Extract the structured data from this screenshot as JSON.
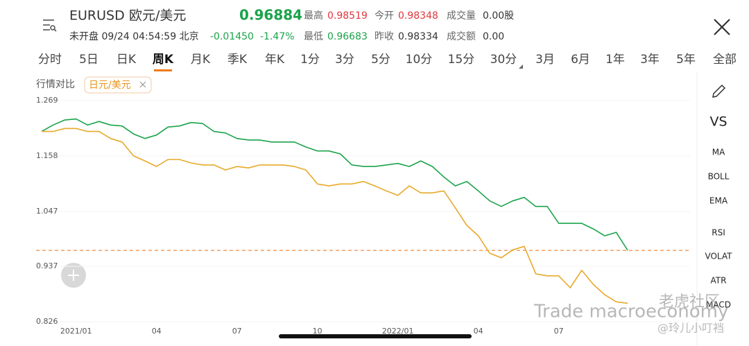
{
  "header": {
    "symbol_name": "欧元/美元",
    "price": "0.96884",
    "high_label": "最高",
    "high": "0.98519",
    "open_label": "今开",
    "open": "0.98348",
    "volume_label": "成交量",
    "volume": "0.00股",
    "status": "未开盘 09/24 04:54:59 北京",
    "change": "-0.01450",
    "change_pct": "-1.47%",
    "low_label": "最低",
    "low": "0.96683",
    "prev_close_label": "昨收",
    "prev_close": "0.98334",
    "turnover_label": "成交额",
    "turnover": "0.00"
  },
  "tabs": {
    "items": [
      "分时",
      "5日",
      "日K",
      "周K",
      "月K",
      "季K",
      "年K",
      "1分",
      "3分",
      "5分",
      "10分",
      "15分",
      "30分",
      "3月",
      "6月",
      "1年",
      "3年",
      "5年",
      "全部"
    ],
    "selected": 3
  },
  "compare_label": "行情对比",
  "side_menu": [
    "VS",
    "MA",
    "BOLL",
    "EMA",
    "RSI",
    "VOLAT",
    "ATR",
    "MACD"
  ],
  "watermark": {
    "text": "Trade macroeconomy",
    "brand": "老虎社区",
    "author": "@玲儿小叮裆"
  },
  "chart_data": {
    "type": "line",
    "ylim": [
      0.826,
      1.269
    ],
    "yticks": [
      0.826,
      0.937,
      1.047,
      1.158,
      1.269
    ],
    "grid": true,
    "hline": 0.96884,
    "hline_color": "#f08a3c",
    "categories": [
      null,
      null,
      null,
      "2021/01",
      null,
      null,
      null,
      null,
      null,
      null,
      "04",
      null,
      null,
      null,
      null,
      null,
      null,
      "07",
      null,
      null,
      null,
      null,
      null,
      null,
      "10",
      null,
      null,
      null,
      null,
      null,
      null,
      "2022/01",
      null,
      null,
      null,
      null,
      null,
      null,
      "04",
      null,
      null,
      null,
      null,
      null,
      null,
      "07",
      null,
      null,
      null,
      null,
      null,
      null
    ],
    "series": [
      {
        "name": "EURUSD",
        "color": "#1aa34a",
        "values": [
          1.207,
          1.22,
          1.23,
          1.232,
          1.22,
          1.227,
          1.22,
          1.218,
          1.202,
          1.193,
          1.2,
          1.216,
          1.218,
          1.225,
          1.223,
          1.207,
          1.204,
          1.193,
          1.19,
          1.19,
          1.186,
          1.186,
          1.186,
          1.176,
          1.168,
          1.168,
          1.162,
          1.14,
          1.137,
          1.137,
          1.14,
          1.143,
          1.137,
          1.148,
          1.137,
          1.116,
          1.098,
          1.107,
          1.088,
          1.068,
          1.057,
          1.068,
          1.075,
          1.057,
          1.057,
          1.023,
          1.023,
          1.023,
          1.012,
          0.998,
          1.005,
          0.969
        ]
      },
      {
        "name": "日元/美元",
        "color": "#e8a92a",
        "values": [
          1.207,
          1.207,
          1.213,
          1.213,
          1.207,
          1.207,
          1.193,
          1.186,
          1.158,
          1.148,
          1.137,
          1.151,
          1.151,
          1.144,
          1.14,
          1.14,
          1.13,
          1.137,
          1.134,
          1.14,
          1.14,
          1.14,
          1.137,
          1.13,
          1.102,
          1.098,
          1.102,
          1.102,
          1.107,
          1.098,
          1.088,
          1.079,
          1.098,
          1.084,
          1.084,
          1.088,
          1.054,
          1.019,
          0.998,
          0.963,
          0.954,
          0.97,
          0.977,
          0.922,
          0.918,
          0.918,
          0.894,
          0.929,
          0.901,
          0.88,
          0.866,
          0.863
        ]
      }
    ]
  }
}
